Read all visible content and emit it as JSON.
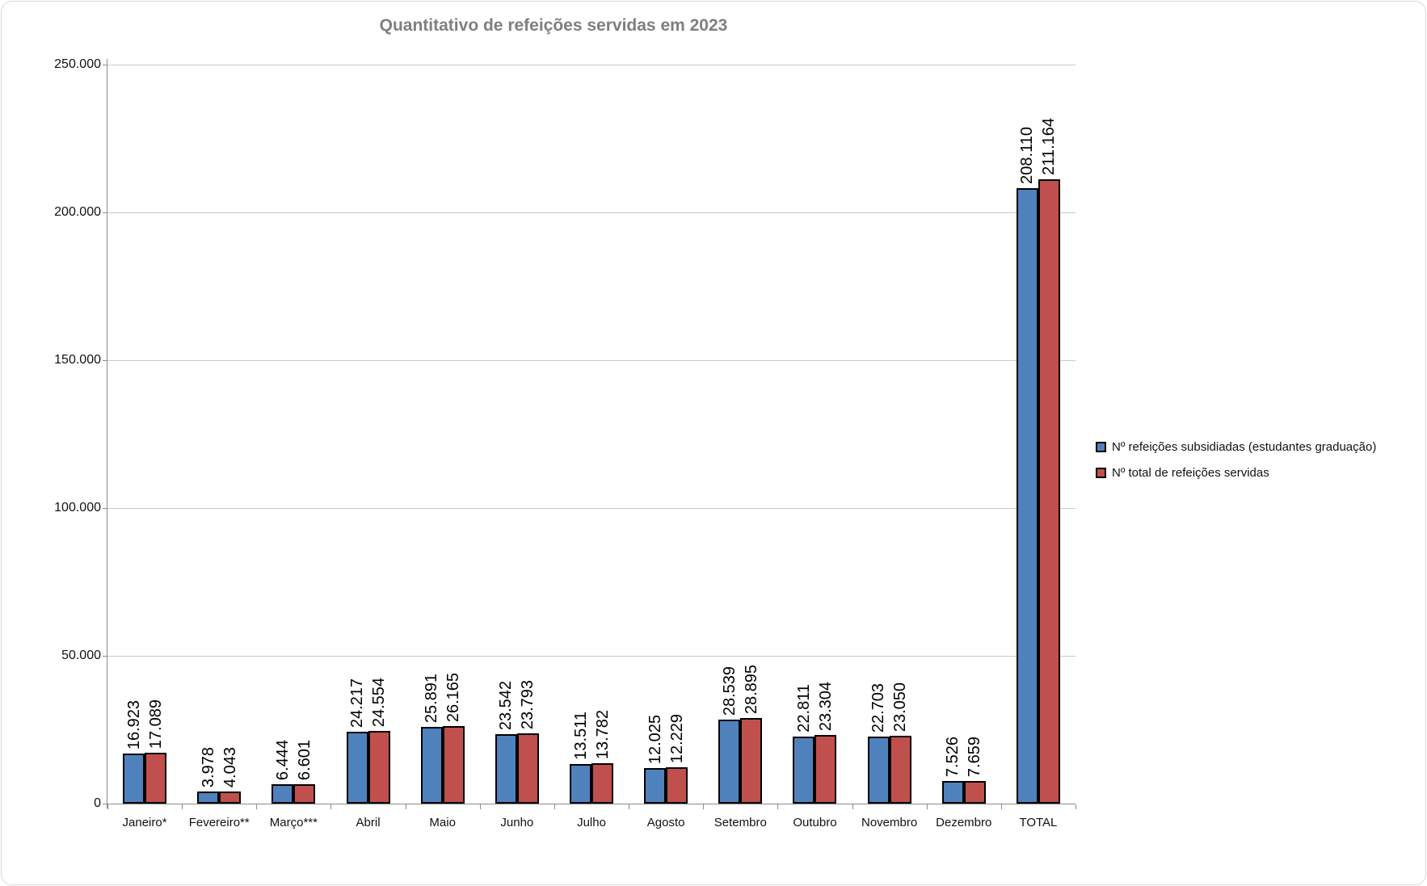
{
  "chart": {
    "title": "Quantitativo de refeições servidas em 2023"
  },
  "chart_data": {
    "type": "bar",
    "title": "Quantitativo de refeições servidas em 2023",
    "categories": [
      "Janeiro*",
      "Fevereiro**",
      "Março***",
      "Abril",
      "Maio",
      "Junho",
      "Julho",
      "Agosto",
      "Setembro",
      "Outubro",
      "Novembro",
      "Dezembro",
      "TOTAL"
    ],
    "series": [
      {
        "name": "Nº refeições subsidiadas (estudantes graduação)",
        "color": "#4F81BD",
        "values": [
          16923,
          3978,
          6444,
          24217,
          25891,
          23542,
          13511,
          12025,
          28539,
          22811,
          22703,
          7526,
          208110
        ],
        "labels": [
          "16.923",
          "3.978",
          "6.444",
          "24.217",
          "25.891",
          "23.542",
          "13.511",
          "12.025",
          "28.539",
          "22.811",
          "22.703",
          "7.526",
          "208.110"
        ]
      },
      {
        "name": "Nº total de refeições servidas",
        "color": "#C0504D",
        "values": [
          17089,
          4043,
          6601,
          24554,
          26165,
          23793,
          13782,
          12229,
          28895,
          23304,
          23050,
          7659,
          211164
        ],
        "labels": [
          "17.089",
          "4.043",
          "6.601",
          "24.554",
          "26.165",
          "23.793",
          "13.782",
          "12.229",
          "28.895",
          "23.304",
          "23.050",
          "7.659",
          "211.164"
        ]
      }
    ],
    "ylim": [
      0,
      250000
    ],
    "ytick_step": 50000,
    "ytick_labels": [
      "0",
      "50.000",
      "100.000",
      "150.000",
      "200.000",
      "250.000"
    ],
    "grid": true,
    "legend_position": "right",
    "data_labels_rotation": "vertical",
    "bar_border_color": "#000000"
  },
  "colors": {
    "title": "#7F7F7F",
    "series_blue": "#4F81BD",
    "series_red": "#C0504D",
    "gridline": "#C9C9C9",
    "axis_line": "#8C8C8C",
    "frame_border": "#D9D9D9"
  }
}
